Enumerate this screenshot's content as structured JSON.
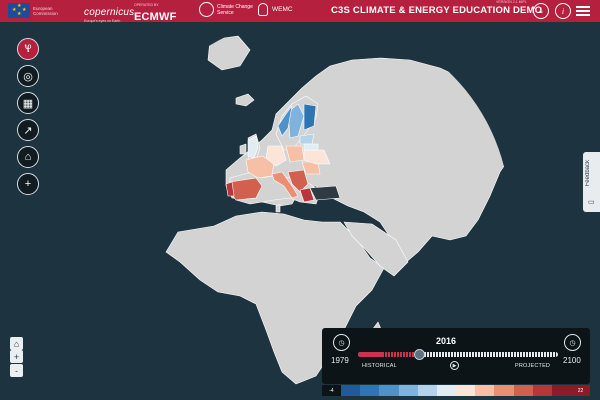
{
  "header": {
    "eu_logo_text": "European Commission",
    "copernicus_name": "opernicus",
    "copernicus_sub": "Europe's eyes on Earth",
    "ecmwf_small": "OPERATED BY",
    "ecmwf_name": "ECMWF",
    "ccs_text": "Climate Change Service",
    "wemc_text": "WEMC",
    "title": "C3S CLIMATE & ENERGY EDUCATION DEMO",
    "version": "VERSION 2.1 IMPL",
    "download_icon": "download-icon",
    "info_icon": "info-icon",
    "menu_icon": "hamburger-menu-icon",
    "brand_color": "#b5203f"
  },
  "toolbar": {
    "items": [
      {
        "name": "thermometer-icon",
        "glyph": "Ⳡ",
        "active": true
      },
      {
        "name": "globe-icon",
        "glyph": "◎",
        "active": false
      },
      {
        "name": "calendar-icon",
        "glyph": "▦",
        "active": false
      },
      {
        "name": "chart-icon",
        "glyph": "↗",
        "active": false
      },
      {
        "name": "factory-icon",
        "glyph": "⌂",
        "active": false
      },
      {
        "name": "add-icon",
        "glyph": "+",
        "active": false
      }
    ]
  },
  "feedback": {
    "label": "Feedback",
    "icon": "feedback-icon"
  },
  "zoom": {
    "home_glyph": "⌂",
    "in_glyph": "+",
    "out_glyph": "-"
  },
  "timeline": {
    "start_year": "1979",
    "end_year": "2100",
    "current_year": "2016",
    "historical_label": "HISTORICAL",
    "projected_label": "PROJECTED",
    "clock_glyph": "◷",
    "play_glyph": "▶",
    "progress": 0.31
  },
  "legend": {
    "min_label": "-4",
    "max_label": "22",
    "colors": [
      "#1f5b99",
      "#2f75b4",
      "#4f92c9",
      "#7fb2dc",
      "#b5d2eb",
      "#e1ecf3",
      "#fbe4d8",
      "#f6bfa6",
      "#ea8f74",
      "#d3604f",
      "#b8363a",
      "#8e1a27"
    ]
  },
  "map": {
    "land_color": "#d3d3d3",
    "ocean_color": "#1d3340",
    "border_color": "#ffffff"
  }
}
